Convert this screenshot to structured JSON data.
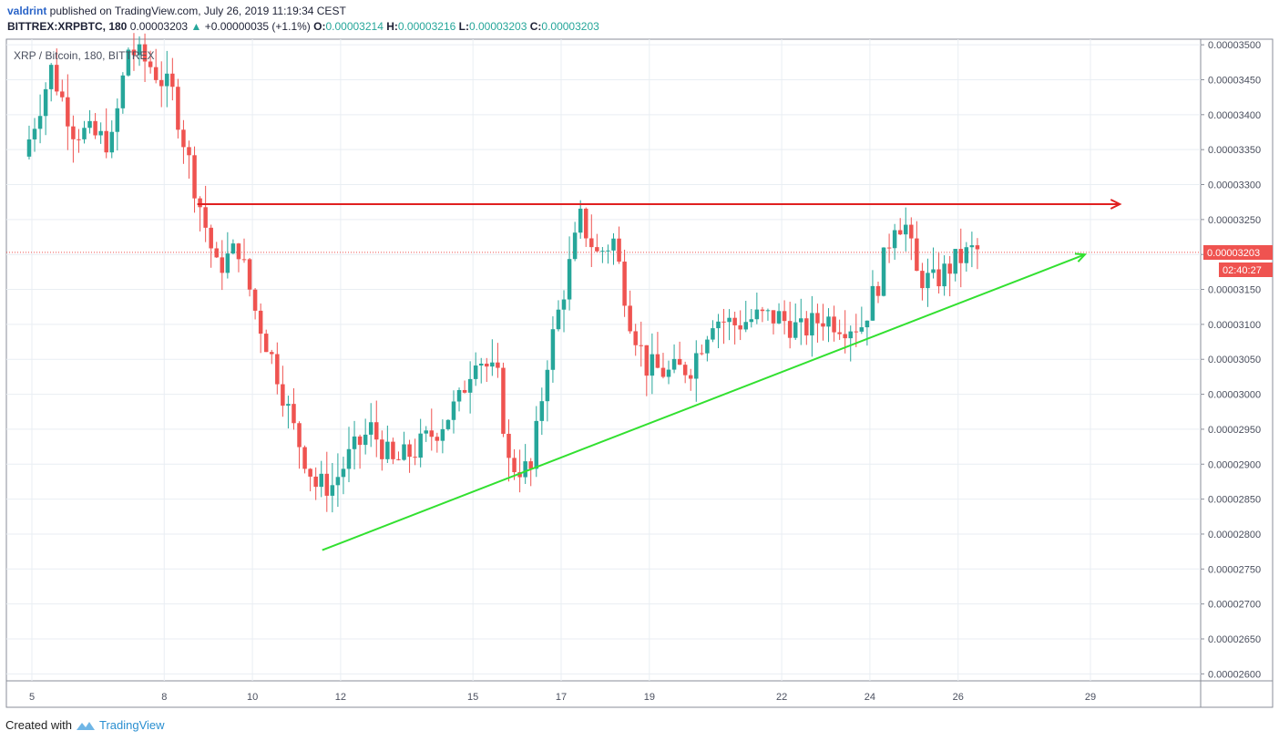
{
  "header": {
    "author": "valdrint",
    "published_text": " published on TradingView.com, July 26, 2019 11:19:34 CEST",
    "symbol": "BITTREX:XRPBTC, 180",
    "last_price": "0.00003203",
    "change_arrow": "▲",
    "change": "+0.00000035 (+1.1%)",
    "o_label": "O:",
    "o_value": "0.00003214",
    "h_label": "H:",
    "h_value": "0.00003216",
    "l_label": "L:",
    "l_value": "0.00003203",
    "c_label": "C:",
    "c_value": "0.00003203"
  },
  "legend": "XRP / Bitcoin, 180, BITTREX",
  "price_tag": "0.00003203",
  "countdown": "02:40:27",
  "footer": {
    "created_with": "Created with",
    "brand": "TradingView"
  },
  "colors": {
    "up": "#26a69a",
    "down": "#ef5350",
    "resistance": "#e02020",
    "support": "#32e030",
    "grid": "#e9eef3",
    "current": "#ef5350"
  },
  "chart_data": {
    "type": "candlestick",
    "y_ticks": [
      "0.00003500",
      "0.00003450",
      "0.00003400",
      "0.00003350",
      "0.00003300",
      "0.00003250",
      "0.00003200",
      "0.00003150",
      "0.00003100",
      "0.00003050",
      "0.00003000",
      "0.00002950",
      "0.00002900",
      "0.00002850",
      "0.00002800",
      "0.00002750",
      "0.00002700",
      "0.00002650",
      "0.00002600"
    ],
    "x_ticks": [
      "5",
      "8",
      "10",
      "12",
      "15",
      "17",
      "19",
      "22",
      "24",
      "26",
      "29"
    ],
    "ylim": [
      2.59e-05,
      3.508e-05
    ],
    "current_price": 3.203e-05,
    "resistance": {
      "y": 3.272e-05,
      "from": "Jul 8 18:00",
      "to": "Jul 29 16:00",
      "color": "red"
    },
    "support": {
      "from": [
        "Jul 11 14:00",
        2.777e-05
      ],
      "to": [
        "Jul 28 21:00",
        3.2e-05
      ],
      "color": "green"
    },
    "price_path": [
      [
        "Jul 4 21:00",
        3.34e-05
      ],
      [
        "Jul 5 12:00",
        3.465e-05
      ],
      [
        "Jul 6 00:00",
        3.38e-05
      ],
      [
        "Jul 6 21:00",
        3.36e-05
      ],
      [
        "Jul 7 06:00",
        3.495e-05
      ],
      [
        "Jul 7 18:00",
        3.47e-05
      ],
      [
        "Jul 8 06:00",
        3.43e-05
      ],
      [
        "Jul 8 18:00",
        3.3e-05
      ],
      [
        "Jul 9 06:00",
        3.18e-05
      ],
      [
        "Jul 9 18:00",
        3.21e-05
      ],
      [
        "Jul 10 03:00",
        3.12e-05
      ],
      [
        "Jul 10 15:00",
        3.03e-05
      ],
      [
        "Jul 11 00:00",
        2.95e-05
      ],
      [
        "Jul 11 12:00",
        2.87e-05
      ],
      [
        "Jul 11 21:00",
        2.87e-05
      ],
      [
        "Jul 12 06:00",
        2.91e-05
      ],
      [
        "Jul 12 18:00",
        2.95e-05
      ],
      [
        "Jul 13 06:00",
        2.9e-05
      ],
      [
        "Jul 13 18:00",
        2.92e-05
      ],
      [
        "Jul 14 06:00",
        2.95e-05
      ],
      [
        "Jul 14 18:00",
        2.99e-05
      ],
      [
        "Jul 15 03:00",
        3.06e-05
      ],
      [
        "Jul 15 15:00",
        3.02e-05
      ],
      [
        "Jul 15 21:00",
        2.9e-05
      ],
      [
        "Jul 16 09:00",
        2.89e-05
      ],
      [
        "Jul 16 18:00",
        3.05e-05
      ],
      [
        "Jul 17 03:00",
        3.15e-05
      ],
      [
        "Jul 17 12:00",
        3.25e-05
      ],
      [
        "Jul 17 21:00",
        3.2e-05
      ],
      [
        "Jul 18 06:00",
        3.22e-05
      ],
      [
        "Jul 18 15:00",
        3.11e-05
      ],
      [
        "Jul 19 00:00",
        3.04e-05
      ],
      [
        "Jul 19 12:00",
        3.03e-05
      ],
      [
        "Jul 20 00:00",
        3.04e-05
      ],
      [
        "Jul 20 12:00",
        3.11e-05
      ],
      [
        "Jul 21 00:00",
        3.1e-05
      ],
      [
        "Jul 21 12:00",
        3.11e-05
      ],
      [
        "Jul 22 00:00",
        3.11e-05
      ],
      [
        "Jul 22 12:00",
        3.09e-05
      ],
      [
        "Jul 23 00:00",
        3.11e-05
      ],
      [
        "Jul 23 12:00",
        3.1e-05
      ],
      [
        "Jul 23 21:00",
        3.1e-05
      ],
      [
        "Jul 24 06:00",
        3.16e-05
      ],
      [
        "Jul 24 15:00",
        3.25e-05
      ],
      [
        "Jul 24 21:00",
        3.24e-05
      ],
      [
        "Jul 25 03:00",
        3.17e-05
      ],
      [
        "Jul 25 12:00",
        3.16e-05
      ],
      [
        "Jul 26 00:00",
        3.19e-05
      ],
      [
        "Jul 26 09:00",
        3.205e-05
      ]
    ]
  }
}
